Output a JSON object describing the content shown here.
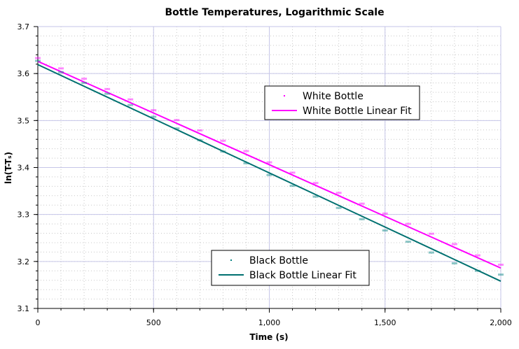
{
  "chart_data": {
    "type": "scatter",
    "title": "Bottle Temperatures, Logarithmic Scale",
    "xlabel": "Time (s)",
    "ylabel": "ln(T-Tₛ)",
    "xlim": [
      0,
      2000
    ],
    "ylim": [
      3.1,
      3.7
    ],
    "xticks": [
      0,
      500,
      1000,
      1500,
      2000
    ],
    "xtick_labels": [
      "0",
      "500",
      "1,000",
      "1,500",
      "2,000"
    ],
    "yticks": [
      3.1,
      3.2,
      3.3,
      3.4,
      3.5,
      3.6,
      3.7
    ],
    "ytick_labels": [
      "3.1",
      "3.2",
      "3.3",
      "3.4",
      "3.5",
      "3.6",
      "3.7"
    ],
    "grid": true,
    "series": [
      {
        "name": "White Bottle",
        "kind": "points",
        "color": "#ff00ff",
        "x": [
          0,
          100,
          200,
          300,
          400,
          500,
          600,
          700,
          800,
          900,
          1000,
          1100,
          1200,
          1300,
          1400,
          1500,
          1600,
          1700,
          1800,
          1900,
          2000
        ],
        "y": [
          3.633,
          3.611,
          3.589,
          3.567,
          3.545,
          3.522,
          3.501,
          3.479,
          3.457,
          3.435,
          3.411,
          3.389,
          3.367,
          3.346,
          3.323,
          3.302,
          3.28,
          3.259,
          3.237,
          3.213,
          3.193
        ]
      },
      {
        "name": "White Bottle Linear Fit",
        "kind": "line",
        "color": "#ff00ff",
        "x": [
          0,
          2000
        ],
        "y": [
          3.626,
          3.186
        ]
      },
      {
        "name": "Black Bottle",
        "kind": "points",
        "color": "#008080",
        "x": [
          0,
          100,
          200,
          300,
          400,
          500,
          600,
          700,
          800,
          900,
          1000,
          1100,
          1200,
          1300,
          1400,
          1500,
          1600,
          1700,
          1800,
          1900,
          2000
        ],
        "y": [
          3.627,
          3.603,
          3.58,
          3.557,
          3.533,
          3.508,
          3.483,
          3.458,
          3.434,
          3.409,
          3.384,
          3.361,
          3.338,
          3.314,
          3.29,
          3.266,
          3.242,
          3.219,
          3.196,
          3.18,
          3.172
        ]
      },
      {
        "name": "Black Bottle Linear Fit",
        "kind": "line",
        "color": "#007070",
        "x": [
          0,
          2000
        ],
        "y": [
          3.619,
          3.158
        ]
      }
    ],
    "legends": [
      {
        "placement": "upper-right",
        "entries": [
          "White Bottle",
          "White Bottle Linear Fit"
        ]
      },
      {
        "placement": "lower-center",
        "entries": [
          "Black Bottle",
          "Black Bottle Linear Fit"
        ]
      }
    ]
  }
}
